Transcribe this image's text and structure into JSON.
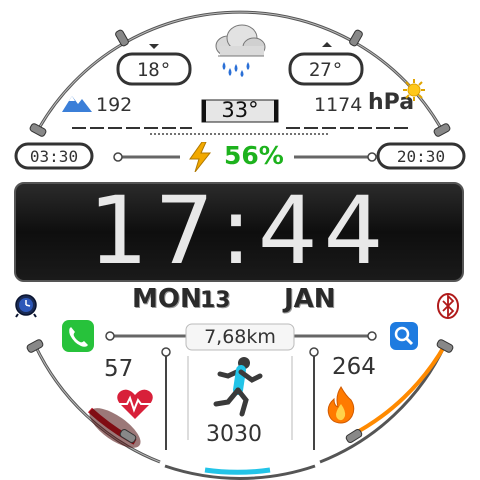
{
  "weather": {
    "temp_low": "18°",
    "temp_high": "27°",
    "current_temp": "33°",
    "altitude": "192",
    "pressure_value": "1174",
    "pressure_unit": "hPa",
    "icon": "rain-cloud-icon"
  },
  "sun": {
    "sunrise": "03:30",
    "sunset": "20:30"
  },
  "battery": {
    "percent_label": "56%",
    "percent": 56,
    "color": "#1db21d"
  },
  "clock": {
    "time": "17:44"
  },
  "date": {
    "weekday": "MON",
    "day": "13",
    "month": "JAN"
  },
  "activity": {
    "distance": "7,68km",
    "heart_rate": "57",
    "calories": "264",
    "steps": "3030",
    "steps_progress": 0.35,
    "calories_progress": 0.55,
    "heart_progress": 0.25
  },
  "colors": {
    "accent_heart": "#d8203a",
    "accent_calories": "#ff8a00",
    "accent_steps": "#22c4e8",
    "phone": "#27c23b",
    "search": "#1e7be0"
  },
  "icons": {
    "phone": "phone-icon",
    "search": "search-icon",
    "alarm": "alarm-icon",
    "bluetooth": "bluetooth-icon",
    "lightning": "lightning-icon",
    "sun": "sun-icon",
    "mountain": "mountain-icon",
    "heart": "heartbeat-icon",
    "flame": "flame-icon",
    "runner": "runner-icon"
  }
}
